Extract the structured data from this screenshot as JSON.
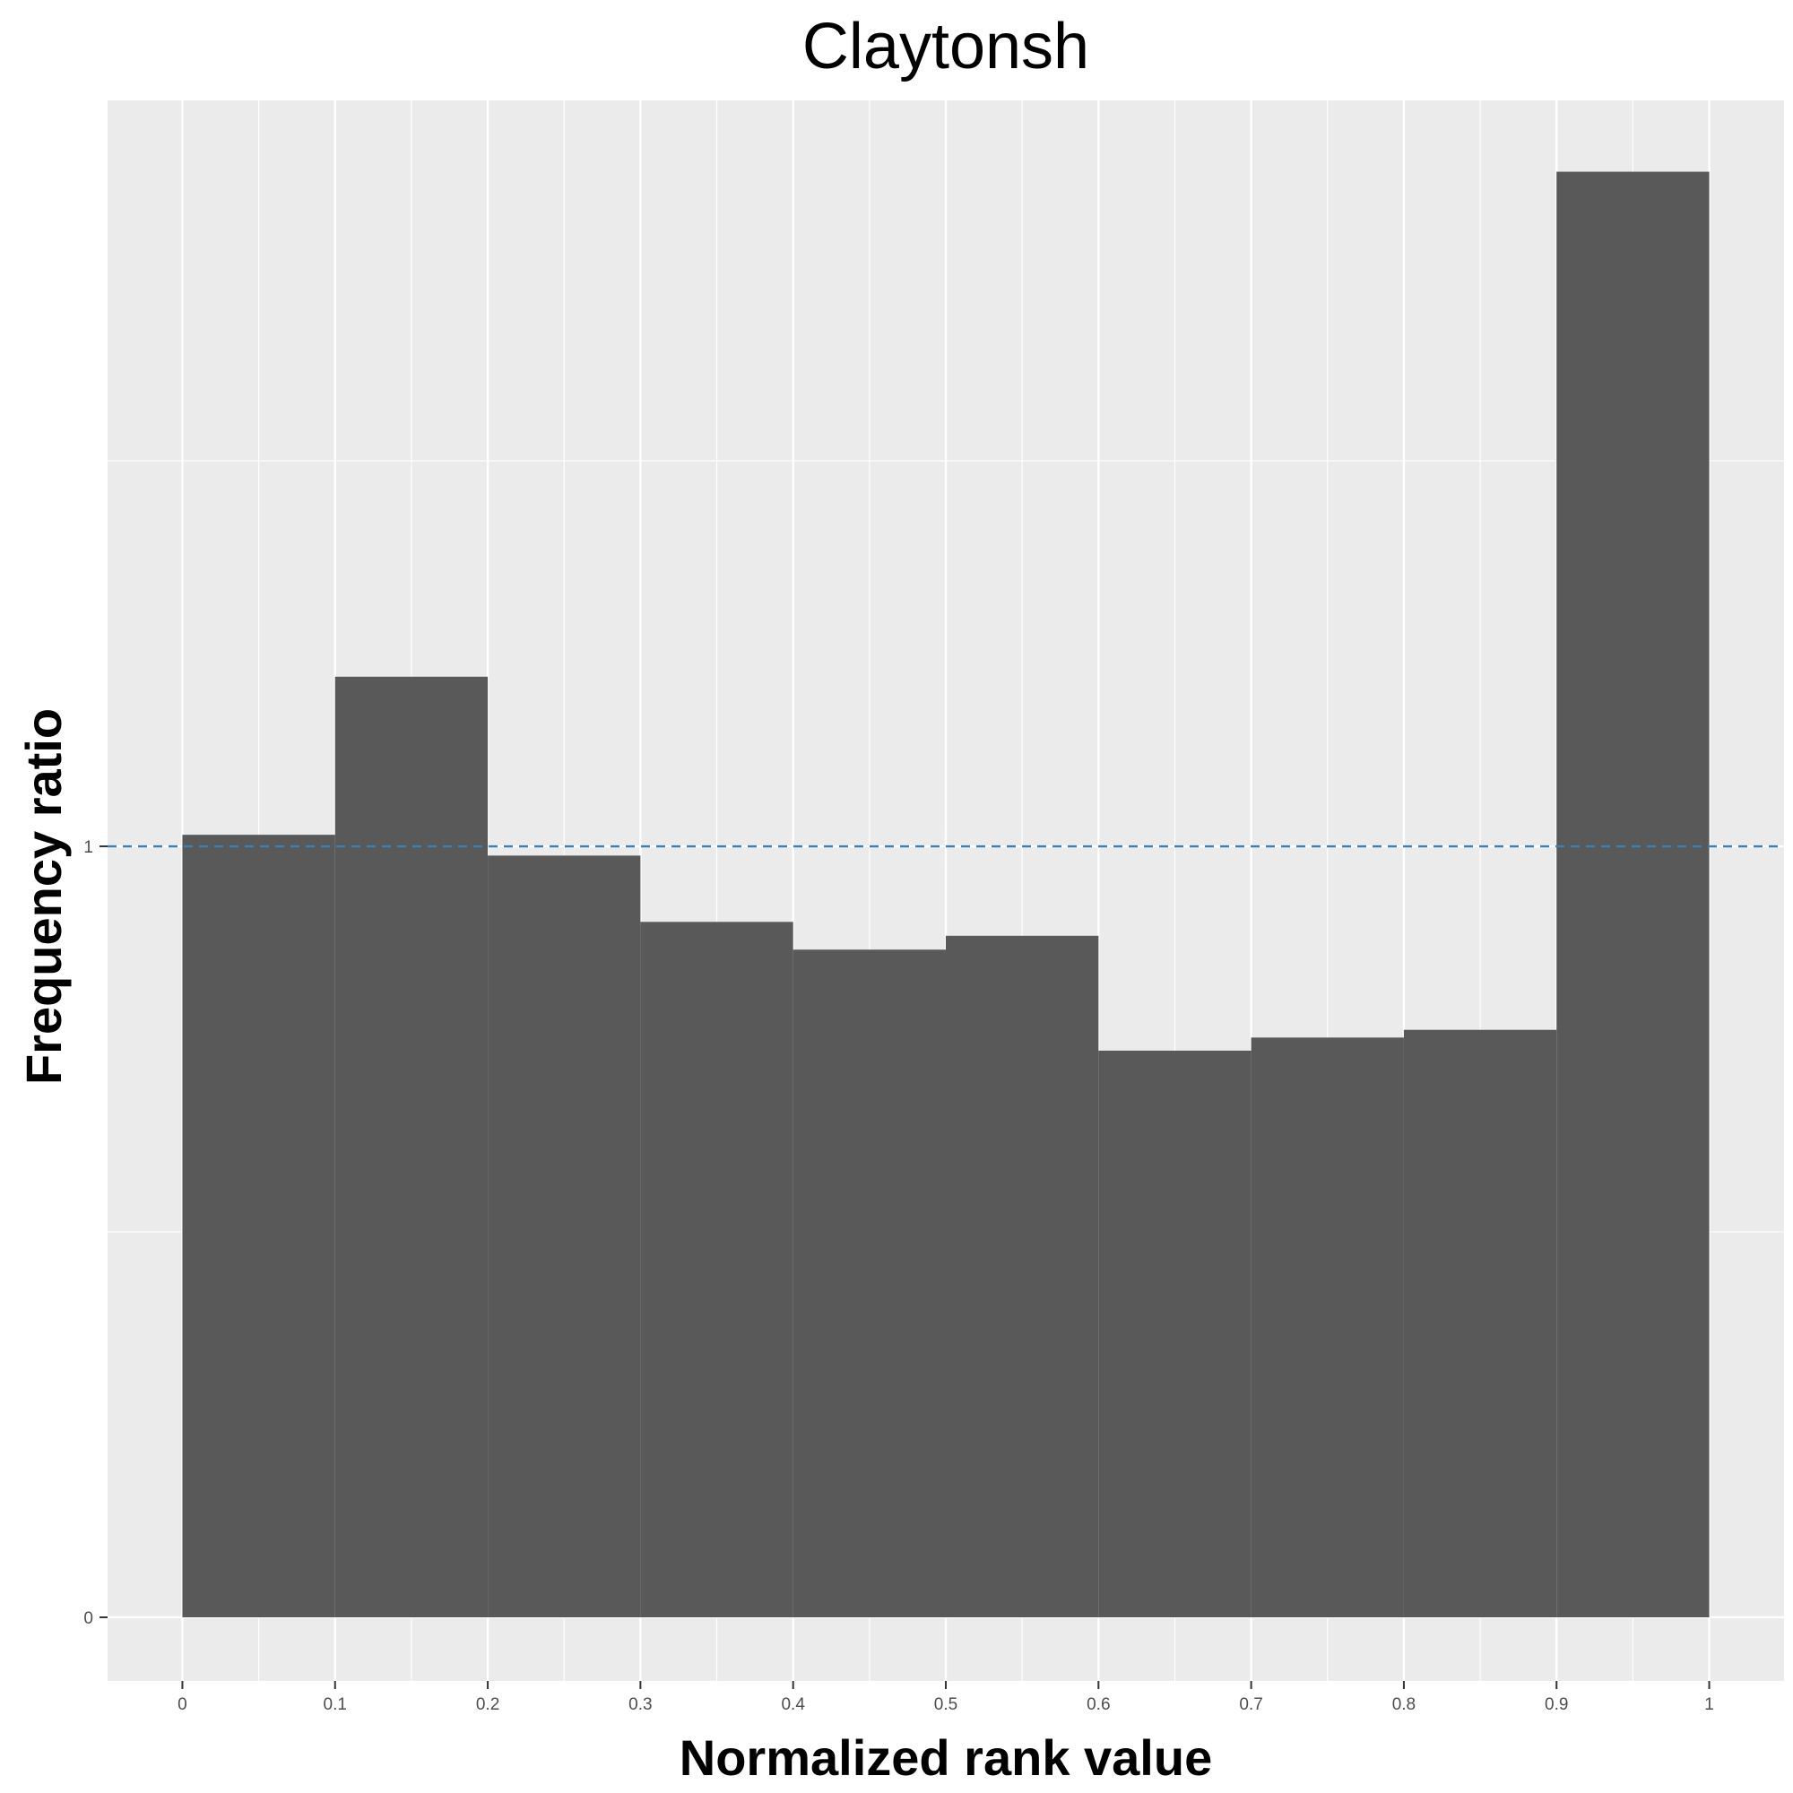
{
  "chart_data": {
    "type": "bar",
    "title": "Claytonsh",
    "xlabel": "Normalized rank value",
    "ylabel": "Frequency ratio",
    "bins": [
      {
        "x0": 0.0,
        "x1": 0.1,
        "value": 1.015
      },
      {
        "x0": 0.1,
        "x1": 0.2,
        "value": 1.22
      },
      {
        "x0": 0.2,
        "x1": 0.3,
        "value": 0.988
      },
      {
        "x0": 0.3,
        "x1": 0.4,
        "value": 0.902
      },
      {
        "x0": 0.4,
        "x1": 0.5,
        "value": 0.866
      },
      {
        "x0": 0.5,
        "x1": 0.6,
        "value": 0.884
      },
      {
        "x0": 0.6,
        "x1": 0.7,
        "value": 0.735
      },
      {
        "x0": 0.7,
        "x1": 0.8,
        "value": 0.752
      },
      {
        "x0": 0.8,
        "x1": 0.9,
        "value": 0.762
      },
      {
        "x0": 0.9,
        "x1": 1.0,
        "value": 1.875
      }
    ],
    "xlim": [
      -0.049,
      1.049
    ],
    "ylim": [
      -0.0825,
      1.9675
    ],
    "x_ticks": [
      {
        "value": 0.0,
        "label": "0"
      },
      {
        "value": 0.1,
        "label": "0.1"
      },
      {
        "value": 0.2,
        "label": "0.2"
      },
      {
        "value": 0.3,
        "label": "0.3"
      },
      {
        "value": 0.4,
        "label": "0.4"
      },
      {
        "value": 0.5,
        "label": "0.5"
      },
      {
        "value": 0.6,
        "label": "0.6"
      },
      {
        "value": 0.7,
        "label": "0.7"
      },
      {
        "value": 0.8,
        "label": "0.8"
      },
      {
        "value": 0.9,
        "label": "0.9"
      },
      {
        "value": 1.0,
        "label": "1"
      }
    ],
    "y_ticks": [
      {
        "value": 0,
        "label": "0"
      },
      {
        "value": 1,
        "label": "1"
      }
    ],
    "x_minor_ticks": [
      0.05,
      0.15,
      0.25,
      0.35,
      0.45,
      0.55,
      0.65,
      0.75,
      0.85,
      0.95
    ],
    "y_minor_ticks": [
      0.5,
      1.5
    ],
    "reference_line": {
      "y": 1,
      "style": "dashed",
      "color": "#3a7fb5"
    },
    "grid": true,
    "colors": {
      "panel_background": "#ebebeb",
      "grid_major": "#ffffff",
      "bar_fill": "#595959",
      "reference_line": "#3a7fb5"
    }
  }
}
